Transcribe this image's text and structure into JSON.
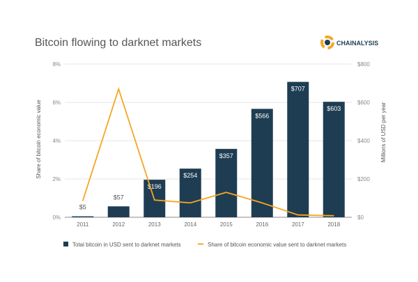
{
  "chart_data": {
    "type": "bar+line",
    "title": "Bitcoin flowing to darknet markets",
    "brand": "CHAINALYSIS",
    "categories": [
      "2011",
      "2012",
      "2013",
      "2014",
      "2015",
      "2016",
      "2017",
      "2018"
    ],
    "series": [
      {
        "name": "Total bitcoin in USD sent to darknet markets",
        "type": "bar",
        "axis": "right",
        "values": [
          5,
          57,
          196,
          254,
          357,
          566,
          707,
          603
        ],
        "labels": [
          "$5",
          "$57",
          "$196",
          "$254",
          "$357",
          "$566",
          "$707",
          "$603"
        ],
        "color": "#1f3d52"
      },
      {
        "name": "Share of bitcoin economic value sent to darknet markets",
        "type": "line",
        "axis": "left",
        "values": [
          0.85,
          6.7,
          0.9,
          0.75,
          1.3,
          0.75,
          0.12,
          0.08
        ],
        "color": "#f5a623"
      }
    ],
    "ylabel_left": "Share of bitcoin economic value",
    "ylabel_right": "Millions of USD per year",
    "ylim_left": [
      0,
      8
    ],
    "ylim_right": [
      0,
      800
    ],
    "yticks_left": [
      "0%",
      "2%",
      "4%",
      "6%",
      "8%"
    ],
    "yticks_right": [
      "$0",
      "$200",
      "$400",
      "$600",
      "$800"
    ],
    "grid": true,
    "legend": "bottom"
  }
}
